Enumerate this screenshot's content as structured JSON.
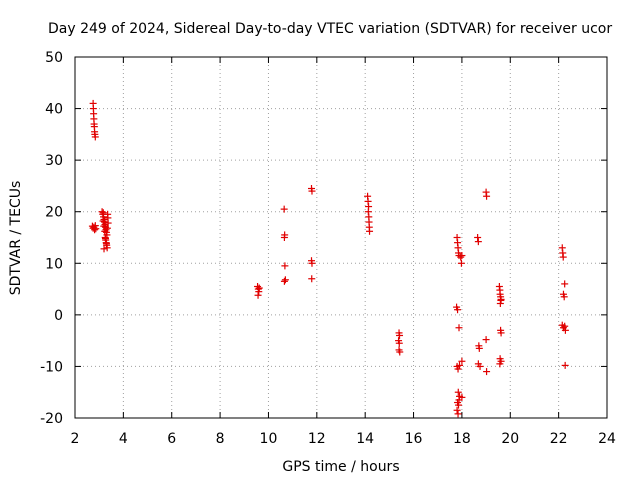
{
  "chart_data": {
    "type": "scatter",
    "title": "Day 249 of 2024, Sidereal Day-to-day VTEC variation (SDTVAR) for receiver ucor",
    "xlabel": "GPS time / hours",
    "ylabel": "SDTVAR / TECUs",
    "xlim": [
      2,
      24
    ],
    "ylim": [
      -20,
      50
    ],
    "x_ticks": [
      "2",
      "4",
      "6",
      "8",
      "10",
      "12",
      "14",
      "16",
      "18",
      "20",
      "22",
      "24"
    ],
    "y_ticks": [
      "-20",
      "-10",
      "0",
      "10",
      "20",
      "30",
      "40",
      "50"
    ],
    "grid": true,
    "marker_color": "#e00000",
    "marker": "plus",
    "series": [
      {
        "name": "SDTVAR",
        "points": [
          [
            2.75,
            41.0
          ],
          [
            2.76,
            40.0
          ],
          [
            2.77,
            39.0
          ],
          [
            2.78,
            38.0
          ],
          [
            2.79,
            37.0
          ],
          [
            2.8,
            36.5
          ],
          [
            2.81,
            35.5
          ],
          [
            2.82,
            35.0
          ],
          [
            2.84,
            34.5
          ],
          [
            2.72,
            17.2
          ],
          [
            2.75,
            16.8
          ],
          [
            2.78,
            17.0
          ],
          [
            2.81,
            16.5
          ],
          [
            2.84,
            17.3
          ],
          [
            2.86,
            16.7
          ],
          [
            3.12,
            20.0
          ],
          [
            3.15,
            19.5
          ],
          [
            3.18,
            19.0
          ],
          [
            3.2,
            18.5
          ],
          [
            3.22,
            18.0
          ],
          [
            3.24,
            17.5
          ],
          [
            3.26,
            17.0
          ],
          [
            3.28,
            16.5
          ],
          [
            3.3,
            16.0
          ],
          [
            3.32,
            15.5
          ],
          [
            3.25,
            15.0
          ],
          [
            3.27,
            14.5
          ],
          [
            3.29,
            14.0
          ],
          [
            3.31,
            13.5
          ],
          [
            3.33,
            13.0
          ],
          [
            3.2,
            12.8
          ],
          [
            3.35,
            19.5
          ],
          [
            3.36,
            18.8
          ],
          [
            3.37,
            17.8
          ],
          [
            3.34,
            16.8
          ],
          [
            3.16,
            18.2
          ],
          [
            3.19,
            17.2
          ],
          [
            3.23,
            16.2
          ],
          [
            3.26,
            14.8
          ],
          [
            3.3,
            13.8
          ],
          [
            3.17,
            19.8
          ],
          [
            9.55,
            5.5
          ],
          [
            9.58,
            5.0
          ],
          [
            9.6,
            4.5
          ],
          [
            9.57,
            3.8
          ],
          [
            9.62,
            5.2
          ],
          [
            10.65,
            20.5
          ],
          [
            10.67,
            15.5
          ],
          [
            10.66,
            15.0
          ],
          [
            10.68,
            9.5
          ],
          [
            10.7,
            6.8
          ],
          [
            10.66,
            6.5
          ],
          [
            11.78,
            24.5
          ],
          [
            11.8,
            24.0
          ],
          [
            11.78,
            10.5
          ],
          [
            11.8,
            10.0
          ],
          [
            11.79,
            7.0
          ],
          [
            14.1,
            23.0
          ],
          [
            14.12,
            22.0
          ],
          [
            14.14,
            21.0
          ],
          [
            14.13,
            20.0
          ],
          [
            14.15,
            19.0
          ],
          [
            14.16,
            18.0
          ],
          [
            14.17,
            17.0
          ],
          [
            14.18,
            16.2
          ],
          [
            15.4,
            -3.5
          ],
          [
            15.42,
            -4.0
          ],
          [
            15.38,
            -5.0
          ],
          [
            15.41,
            -5.5
          ],
          [
            15.4,
            -6.8
          ],
          [
            15.43,
            -7.2
          ],
          [
            17.8,
            15.0
          ],
          [
            17.82,
            14.0
          ],
          [
            17.84,
            13.0
          ],
          [
            17.86,
            12.0
          ],
          [
            17.88,
            11.5
          ],
          [
            17.95,
            11.2
          ],
          [
            18.0,
            11.5
          ],
          [
            17.98,
            10.0
          ],
          [
            17.78,
            1.5
          ],
          [
            17.82,
            1.0
          ],
          [
            17.88,
            -2.5
          ],
          [
            17.8,
            -10.0
          ],
          [
            17.84,
            -10.5
          ],
          [
            17.9,
            -9.8
          ],
          [
            18.0,
            -9.0
          ],
          [
            17.85,
            -15.0
          ],
          [
            17.9,
            -15.8
          ],
          [
            18.0,
            -16.0
          ],
          [
            17.82,
            -17.0
          ],
          [
            17.86,
            -17.5
          ],
          [
            17.8,
            -18.5
          ],
          [
            17.84,
            -19.2
          ],
          [
            17.88,
            -16.5
          ],
          [
            18.65,
            15.0
          ],
          [
            18.68,
            14.2
          ],
          [
            18.7,
            -6.0
          ],
          [
            18.72,
            -6.5
          ],
          [
            18.68,
            -9.5
          ],
          [
            18.75,
            -10.0
          ],
          [
            19.0,
            23.8
          ],
          [
            19.02,
            23.0
          ],
          [
            19.0,
            -4.8
          ],
          [
            19.02,
            -11.0
          ],
          [
            19.55,
            5.5
          ],
          [
            19.57,
            4.8
          ],
          [
            19.58,
            4.0
          ],
          [
            19.6,
            3.5
          ],
          [
            19.62,
            3.0
          ],
          [
            19.59,
            2.2
          ],
          [
            19.61,
            2.8
          ],
          [
            19.6,
            -3.0
          ],
          [
            19.62,
            -3.5
          ],
          [
            19.58,
            -8.5
          ],
          [
            19.62,
            -9.0
          ],
          [
            19.57,
            -9.5
          ],
          [
            22.15,
            13.0
          ],
          [
            22.17,
            12.0
          ],
          [
            22.19,
            11.2
          ],
          [
            22.25,
            6.0
          ],
          [
            22.2,
            4.0
          ],
          [
            22.23,
            3.5
          ],
          [
            22.15,
            -2.0
          ],
          [
            22.2,
            -2.5
          ],
          [
            22.25,
            -2.2
          ],
          [
            22.28,
            -3.0
          ],
          [
            22.27,
            -9.8
          ]
        ]
      }
    ]
  }
}
